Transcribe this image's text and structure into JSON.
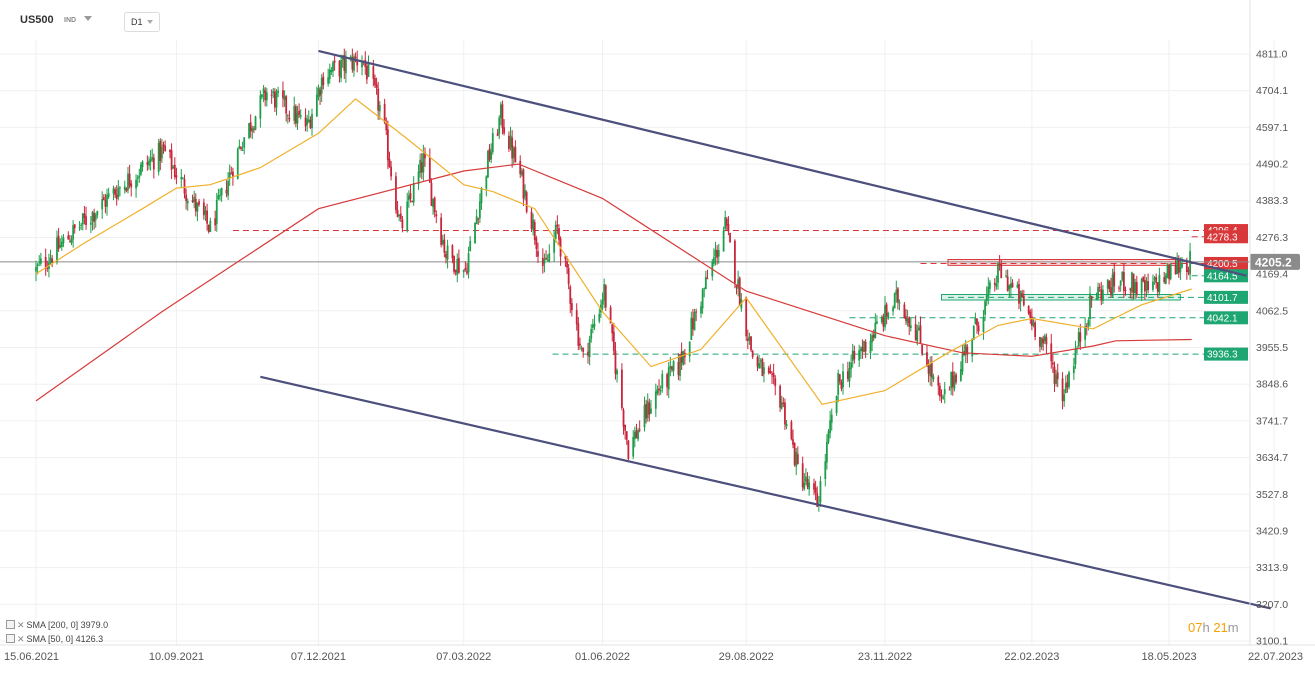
{
  "header": {
    "symbol": "US500",
    "market_type": "IND",
    "timeframe": "D1"
  },
  "indicators": [
    {
      "label": "SMA [200, 0] 3979.0",
      "color": "#d63a3a"
    },
    {
      "label": "SMA [50, 0] 4126.3",
      "color": "#f0b12c"
    }
  ],
  "countdown": {
    "hours": "07",
    "h_unit": "h",
    "minutes": "21",
    "m_unit": "m"
  },
  "chart_data": {
    "type": "candlestick",
    "title": "",
    "xlabel": "",
    "ylabel": "",
    "ylim": [
      3100.1,
      4811.0
    ],
    "y_ticks": [
      "4811.0",
      "4704.1",
      "4597.1",
      "4490.2",
      "4383.3",
      "4276.3",
      "4169.4",
      "4062.5",
      "3955.5",
      "3848.6",
      "3741.7",
      "3634.7",
      "3527.8",
      "3420.9",
      "3313.9",
      "3207.0",
      "3100.1"
    ],
    "x_ticks": [
      "15.06.2021",
      "10.09.2021",
      "07.12.2021",
      "07.03.2022",
      "01.06.2022",
      "29.08.2022",
      "23.11.2022",
      "22.02.2023",
      "18.05.2023",
      "22.07.2023"
    ],
    "last_price": {
      "value": 4205.2,
      "label": "4205.2",
      "color": "#8b8b8b"
    },
    "price_levels": [
      {
        "label": "4296.4",
        "value": 4296.4,
        "color": "#d9383a",
        "style": "dashed"
      },
      {
        "label": "4278.3",
        "value": 4278.3,
        "color": "#d9383a",
        "style": "dashed"
      },
      {
        "label": "4200.5",
        "value": 4200.5,
        "color": "#d9383a",
        "style": "dashed"
      },
      {
        "label": "4164.5",
        "value": 4164.5,
        "color": "#1ea672",
        "style": "dashed"
      },
      {
        "label": "4101.7",
        "value": 4101.7,
        "color": "#1ea672",
        "style": "dashed"
      },
      {
        "label": "4042.1",
        "value": 4042.1,
        "color": "#1ea672",
        "style": "dashed"
      },
      {
        "label": "3936.3",
        "value": 3936.3,
        "color": "#1ea672",
        "style": "dashed"
      }
    ],
    "series": [
      {
        "name": "US500",
        "kind": "candles",
        "anchors": [
          [
            "15.06.2021",
            4180
          ],
          [
            "10.07.2021",
            4300
          ],
          [
            "05.08.2021",
            4420
          ],
          [
            "02.09.2021",
            4530
          ],
          [
            "20.09.2021",
            4380
          ],
          [
            "01.10.2021",
            4300
          ],
          [
            "20.10.2021",
            4550
          ],
          [
            "05.11.2021",
            4700
          ],
          [
            "30.11.2021",
            4600
          ],
          [
            "10.12.2021",
            4750
          ],
          [
            "03.01.2022",
            4800
          ],
          [
            "15.01.2022",
            4640
          ],
          [
            "27.01.2022",
            4300
          ],
          [
            "10.02.2022",
            4500
          ],
          [
            "24.02.2022",
            4230
          ],
          [
            "08.03.2022",
            4180
          ],
          [
            "22.03.2022",
            4500
          ],
          [
            "30.03.2022",
            4630
          ],
          [
            "12.04.2022",
            4440
          ],
          [
            "26.04.2022",
            4180
          ],
          [
            "04.05.2022",
            4300
          ],
          [
            "20.05.2022",
            3920
          ],
          [
            "02.06.2022",
            4120
          ],
          [
            "17.06.2022",
            3660
          ],
          [
            "05.07.2022",
            3830
          ],
          [
            "18.07.2022",
            3900
          ],
          [
            "16.08.2022",
            4310
          ],
          [
            "02.09.2022",
            3930
          ],
          [
            "20.09.2022",
            3800
          ],
          [
            "30.09.2022",
            3600
          ],
          [
            "12.10.2022",
            3500
          ],
          [
            "25.10.2022",
            3850
          ],
          [
            "10.11.2022",
            3960
          ],
          [
            "01.12.2022",
            4100
          ],
          [
            "13.12.2022",
            4000
          ],
          [
            "28.12.2022",
            3790
          ],
          [
            "15.01.2023",
            3980
          ],
          [
            "02.02.2023",
            4180
          ],
          [
            "17.02.2023",
            4080
          ],
          [
            "02.03.2023",
            3960
          ],
          [
            "13.03.2023",
            3820
          ],
          [
            "01.04.2023",
            4110
          ],
          [
            "20.04.2023",
            4150
          ],
          [
            "05.05.2023",
            4120
          ],
          [
            "25.05.2023",
            4200
          ],
          [
            "01.06.2023",
            4205
          ]
        ]
      },
      {
        "name": "SMA [200, 0]",
        "kind": "line",
        "points": [
          [
            "15.06.2021",
            3800
          ],
          [
            "01.09.2021",
            4060
          ],
          [
            "07.12.2021",
            4360
          ],
          [
            "07.03.2022",
            4470
          ],
          [
            "10.04.2022",
            4490
          ],
          [
            "01.06.2022",
            4390
          ],
          [
            "29.08.2022",
            4120
          ],
          [
            "23.11.2022",
            3990
          ],
          [
            "10.01.2023",
            3940
          ],
          [
            "22.02.2023",
            3930
          ],
          [
            "01.04.2023",
            3960
          ],
          [
            "15.04.2023",
            3975
          ],
          [
            "01.06.2023",
            3979
          ]
        ]
      },
      {
        "name": "SMA [50, 0]",
        "kind": "line",
        "points": [
          [
            "15.06.2021",
            4170
          ],
          [
            "15.07.2021",
            4260
          ],
          [
            "20.08.2021",
            4360
          ],
          [
            "10.09.2021",
            4420
          ],
          [
            "01.10.2021",
            4430
          ],
          [
            "01.11.2021",
            4480
          ],
          [
            "07.12.2021",
            4580
          ],
          [
            "30.12.2021",
            4680
          ],
          [
            "01.02.2022",
            4560
          ],
          [
            "07.03.2022",
            4430
          ],
          [
            "25.03.2022",
            4410
          ],
          [
            "20.04.2022",
            4360
          ],
          [
            "01.06.2022",
            4060
          ],
          [
            "01.07.2022",
            3900
          ],
          [
            "01.08.2022",
            3950
          ],
          [
            "29.08.2022",
            4100
          ],
          [
            "15.10.2022",
            3790
          ],
          [
            "23.11.2022",
            3830
          ],
          [
            "01.01.2023",
            3940
          ],
          [
            "01.02.2023",
            4020
          ],
          [
            "22.02.2023",
            4040
          ],
          [
            "01.04.2023",
            4010
          ],
          [
            "01.05.2023",
            4080
          ],
          [
            "01.06.2023",
            4126
          ]
        ]
      }
    ],
    "trendlines": [
      {
        "from": [
          "07.12.2021",
          4820
        ],
        "to": [
          "05.07.2023",
          4165
        ]
      },
      {
        "from": [
          "01.11.2021",
          3870
        ],
        "to": [
          "20.07.2023",
          3195
        ]
      }
    ]
  }
}
